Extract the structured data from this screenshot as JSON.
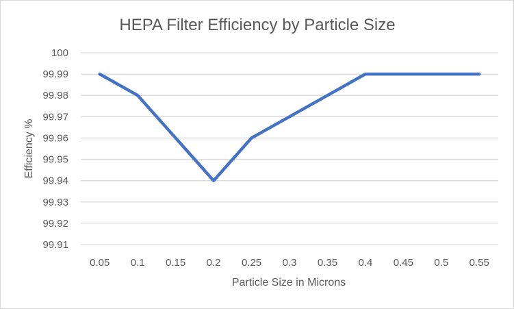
{
  "chart_data": {
    "type": "line",
    "title": "HEPA Filter Efficiency by Particle Size",
    "xlabel": "Particle Size in Microns",
    "ylabel": "Efficiency %",
    "categories": [
      "0.05",
      "0.1",
      "0.15",
      "0.2",
      "0.25",
      "0.3",
      "0.35",
      "0.4",
      "0.45",
      "0.5",
      "0.55"
    ],
    "series": [
      {
        "name": "Efficiency %",
        "color": "#4472c4",
        "values": [
          99.99,
          99.98,
          99.96,
          99.94,
          99.96,
          99.97,
          99.98,
          99.99,
          99.99,
          99.99,
          99.99
        ]
      }
    ],
    "yticks": [
      "99.91",
      "99.92",
      "99.93",
      "99.94",
      "99.95",
      "99.96",
      "99.97",
      "99.98",
      "99.99",
      "100"
    ],
    "ylim": [
      99.91,
      100
    ],
    "grid": true,
    "legend": "none"
  }
}
